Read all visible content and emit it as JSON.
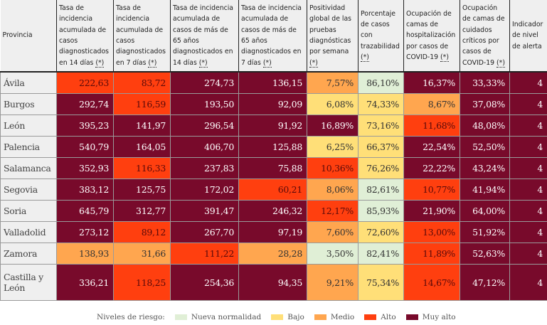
{
  "headers": [
    {
      "text": "Provincia",
      "ast": ""
    },
    {
      "text": "Tasa de incidencia acumulada de casos diagnosticados en 14 días ",
      "ast": "(*)"
    },
    {
      "text": "Tasa de incidencia acumulada de casos diagnosticados en 7 días ",
      "ast": "(*)"
    },
    {
      "text": "Tasa de incidencia acumulada de casos de más de 65 años diagnosticados en 14 días ",
      "ast": "(*)"
    },
    {
      "text": "Tasa de incidencia acumulada de casos de más de 65 años diagnosticados en 7 días ",
      "ast": "(*)"
    },
    {
      "text": "Positividad global de las pruebas diagnósticas por semana ",
      "ast": "(*)"
    },
    {
      "text": "Porcentaje de casos con trazabilidad ",
      "ast": "(*)"
    },
    {
      "text": "Ocupación de camas de hospitalización por casos de COVID-19 ",
      "ast": "(*)"
    },
    {
      "text": "Ocupación de camas de cuidados críticos por casos de COVID-19 ",
      "ast": "(*)"
    },
    {
      "text": "Indicador de nivel de alerta",
      "ast": ""
    }
  ],
  "rows": [
    {
      "provincia": "Ávila",
      "values": [
        "222,63",
        "83,72",
        "274,73",
        "136,15",
        "7,57%",
        "86,10%",
        "16,37%",
        "33,33%",
        "4"
      ],
      "levels": [
        "a",
        "a",
        "x",
        "x",
        "m",
        "n",
        "x",
        "x",
        "x"
      ]
    },
    {
      "provincia": "Burgos",
      "values": [
        "292,74",
        "116,59",
        "193,50",
        "92,09",
        "6,08%",
        "74,33%",
        "8,67%",
        "37,08%",
        "4"
      ],
      "levels": [
        "x",
        "a",
        "x",
        "x",
        "b",
        "b",
        "m",
        "x",
        "x"
      ]
    },
    {
      "provincia": "León",
      "values": [
        "395,23",
        "141,97",
        "296,54",
        "91,92",
        "16,89%",
        "73,16%",
        "11,68%",
        "48,08%",
        "4"
      ],
      "levels": [
        "x",
        "x",
        "x",
        "x",
        "x",
        "b",
        "a",
        "x",
        "x"
      ]
    },
    {
      "provincia": "Palencia",
      "values": [
        "540,79",
        "164,05",
        "406,70",
        "125,88",
        "6,25%",
        "66,37%",
        "22,54%",
        "52,50%",
        "4"
      ],
      "levels": [
        "x",
        "x",
        "x",
        "x",
        "b",
        "b",
        "x",
        "x",
        "x"
      ]
    },
    {
      "provincia": "Salamanca",
      "values": [
        "352,93",
        "116,33",
        "237,83",
        "75,88",
        "10,36%",
        "76,26%",
        "22,22%",
        "43,24%",
        "4"
      ],
      "levels": [
        "x",
        "a",
        "x",
        "x",
        "a",
        "b",
        "x",
        "x",
        "x"
      ]
    },
    {
      "provincia": "Segovia",
      "values": [
        "383,12",
        "125,75",
        "172,02",
        "60,21",
        "8,06%",
        "82,61%",
        "10,77%",
        "41,94%",
        "4"
      ],
      "levels": [
        "x",
        "x",
        "x",
        "a",
        "m",
        "n",
        "a",
        "x",
        "x"
      ]
    },
    {
      "provincia": "Soria",
      "values": [
        "645,79",
        "312,77",
        "391,47",
        "246,32",
        "12,17%",
        "85,93%",
        "21,90%",
        "64,00%",
        "4"
      ],
      "levels": [
        "x",
        "x",
        "x",
        "x",
        "a",
        "n",
        "x",
        "x",
        "x"
      ]
    },
    {
      "provincia": "Valladolid",
      "values": [
        "273,12",
        "89,12",
        "267,70",
        "97,19",
        "7,60%",
        "72,60%",
        "13,00%",
        "51,92%",
        "4"
      ],
      "levels": [
        "x",
        "a",
        "x",
        "x",
        "m",
        "b",
        "a",
        "x",
        "x"
      ]
    },
    {
      "provincia": "Zamora",
      "values": [
        "138,93",
        "31,66",
        "111,22",
        "28,28",
        "3,50%",
        "82,41%",
        "11,89%",
        "52,63%",
        "4"
      ],
      "levels": [
        "m",
        "m",
        "a",
        "m",
        "n",
        "n",
        "a",
        "x",
        "x"
      ]
    },
    {
      "provincia": "Castilla y León",
      "values": [
        "336,21",
        "118,25",
        "254,36",
        "94,35",
        "9,21%",
        "75,34%",
        "14,67%",
        "47,12%",
        "4"
      ],
      "levels": [
        "x",
        "a",
        "x",
        "x",
        "m",
        "b",
        "a",
        "x",
        "x"
      ]
    }
  ],
  "legend": {
    "title": "Niveles de riesgo:",
    "items": [
      {
        "label": "Nueva normalidad",
        "color": "#e0efd6"
      },
      {
        "label": "Bajo",
        "color": "#ffdf78"
      },
      {
        "label": "Medio",
        "color": "#ffa64f"
      },
      {
        "label": "Alto",
        "color": "#ff3f0f"
      },
      {
        "label": "Muy alto",
        "color": "#780a2b"
      }
    ]
  }
}
